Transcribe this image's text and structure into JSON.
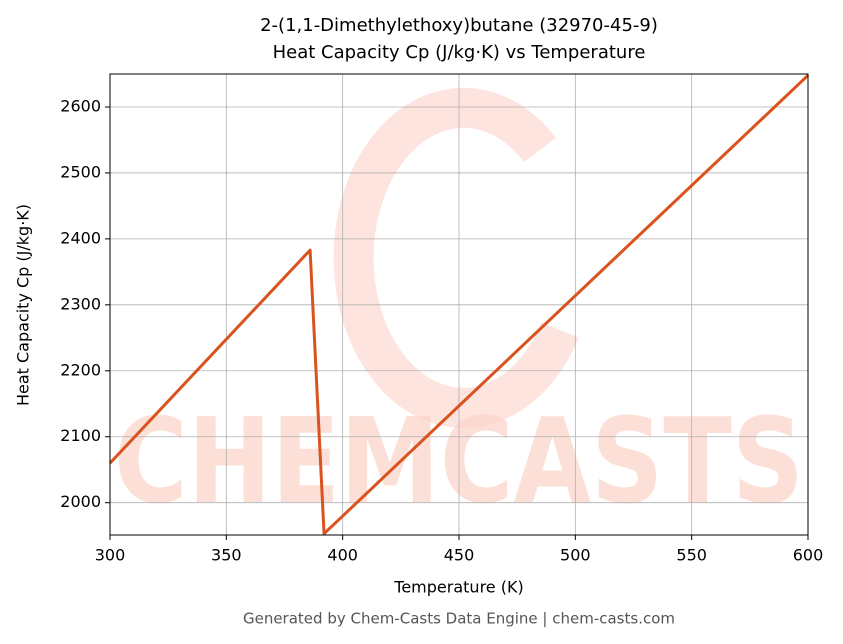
{
  "chart_data": {
    "type": "line",
    "title": "2-(1,1-Dimethylethoxy)butane (32970-45-9)",
    "subtitle": "Heat Capacity Cp (J/kg·K) vs Temperature",
    "x_label": "Temperature (K)",
    "y_label": "Heat Capacity Cp (J/kg·K)",
    "x": [
      300,
      386,
      392,
      600
    ],
    "values": [
      2060,
      2383,
      1953,
      2648
    ],
    "color": "#d9531e",
    "xlim": [
      300,
      600
    ],
    "xticks": [
      300,
      350,
      400,
      450,
      500,
      550,
      600
    ],
    "ylim": [
      1951,
      2650
    ],
    "yticks": [
      2000,
      2100,
      2200,
      2300,
      2400,
      2500,
      2600
    ],
    "grid": true,
    "watermark": "CHEMCASTS",
    "footer": "Generated by Chem-Casts Data Engine | chem-casts.com"
  }
}
